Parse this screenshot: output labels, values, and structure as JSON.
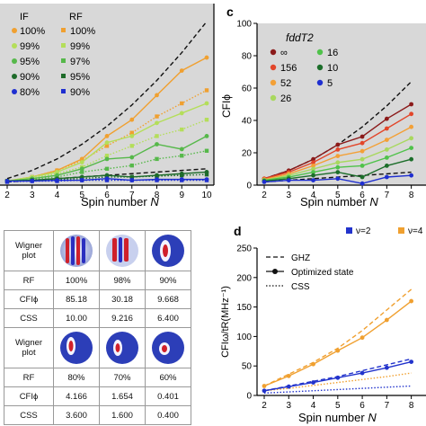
{
  "panel_a": {
    "legend_if_title": "IF",
    "legend_rf_title": "RF",
    "legend_if": [
      "100%",
      "99%",
      "95%",
      "90%",
      "80%"
    ],
    "legend_rf": [
      "100%",
      "99%",
      "97%",
      "95%",
      "90%"
    ],
    "xlabel": "Spin number",
    "xlabel_var": "N",
    "colors": [
      "#f0a030",
      "#b4de5a",
      "#56b84a",
      "#1e6b2a",
      "#1f2fd0"
    ]
  },
  "panel_c": {
    "letter": "c",
    "ylabel": "CFIϕ",
    "legend_title": "fddT2",
    "legend": [
      "∞",
      "156",
      "52",
      "26",
      "16",
      "10",
      "5"
    ],
    "legend_colors": [
      "#8b1a1a",
      "#e2462a",
      "#f3a036",
      "#a8d85e",
      "#4fc24a",
      "#1c6e2a",
      "#1f2fd0"
    ],
    "xlabel": "Spin number",
    "xlabel_var": "N"
  },
  "panel_d": {
    "letter": "d",
    "legend_top": [
      "ν=2",
      "ν=4"
    ],
    "legend_top_colors": [
      "#2233cc",
      "#f0a030"
    ],
    "legend_lines": [
      "GHZ",
      "Optimized state",
      "CSS"
    ],
    "ylabel": "CFIω/tR(MHz⁻¹)",
    "xlabel": "Spin number",
    "xlabel_var": "N"
  },
  "table": {
    "wigner_label_1": "Wigner",
    "wigner_label_2": "plot",
    "top": {
      "rf": {
        "label": "RF",
        "values": [
          "100%",
          "98%",
          "90%"
        ]
      },
      "cfi": {
        "label": "CFIϕ",
        "values": [
          "85.18",
          "30.18",
          "9.668"
        ]
      },
      "css": {
        "label": "CSS",
        "values": [
          "10.00",
          "9.216",
          "6.400"
        ]
      }
    },
    "bottom": {
      "rf": {
        "label": "RF",
        "values": [
          "80%",
          "70%",
          "60%"
        ]
      },
      "cfi": {
        "label": "CFIϕ",
        "values": [
          "4.166",
          "1.654",
          "0.401"
        ]
      },
      "css": {
        "label": "CSS",
        "values": [
          "3.600",
          "1.600",
          "0.400"
        ]
      }
    }
  },
  "chart_data": [
    {
      "type": "line",
      "panel": "a",
      "x": [
        2,
        3,
        4,
        5,
        6,
        7,
        8,
        9,
        10
      ],
      "xlim": [
        2,
        10
      ],
      "xticks": [
        "2",
        "3",
        "4",
        "5",
        "6",
        "7",
        "8",
        "9",
        "10"
      ],
      "series": [
        {
          "name": "100%",
          "style": "solid",
          "color": "#f0a030",
          "values": [
            2.5,
            5,
            9,
            16,
            30,
            40,
            55,
            70,
            78
          ]
        },
        {
          "name": "100%",
          "style": "dotted",
          "color": "#f0a030",
          "values": [
            2.5,
            5,
            9,
            15,
            24,
            32,
            42,
            50,
            58
          ]
        },
        {
          "name": "99%",
          "style": "solid",
          "color": "#b4de5a",
          "values": [
            2.5,
            5,
            8,
            14,
            26,
            30,
            38,
            44,
            50
          ]
        },
        {
          "name": "99%",
          "style": "dotted",
          "color": "#b4de5a",
          "values": [
            2.5,
            4.5,
            7,
            11,
            18,
            24,
            30,
            34,
            40
          ]
        },
        {
          "name": "95%",
          "style": "solid",
          "color": "#56b84a",
          "values": [
            2.5,
            4,
            6,
            10,
            16,
            17,
            25,
            22,
            30
          ]
        },
        {
          "name": "95%",
          "style": "dotted",
          "color": "#56b84a",
          "values": [
            2.5,
            3.5,
            5,
            8,
            10,
            12,
            16,
            18,
            21
          ]
        },
        {
          "name": "90%",
          "style": "solid",
          "color": "#1e6b2a",
          "values": [
            2.5,
            3,
            4,
            5,
            6,
            5,
            6,
            7,
            8
          ]
        },
        {
          "name": "90%",
          "style": "dotted",
          "color": "#1e6b2a",
          "values": [
            2.5,
            3,
            3.5,
            4,
            5,
            5,
            5.5,
            6,
            6.5
          ]
        },
        {
          "name": "80%",
          "style": "solid",
          "color": "#1f2fd0",
          "values": [
            2.5,
            2.5,
            3,
            3,
            4,
            3,
            3.5,
            3.5,
            3.5
          ]
        },
        {
          "name": "80%",
          "style": "dotted",
          "color": "#1f2fd0",
          "values": [
            2,
            2.5,
            2.5,
            3,
            3,
            3,
            3,
            3,
            3
          ]
        }
      ],
      "reference": {
        "style": "dashed",
        "color": "#111111",
        "values": [
          4,
          9,
          16,
          25,
          36,
          49,
          64,
          81,
          100
        ]
      },
      "reference_css": {
        "style": "dashed",
        "color": "#111111",
        "values": [
          2,
          3,
          4,
          5,
          6,
          7,
          8,
          9,
          10
        ]
      }
    },
    {
      "type": "line",
      "panel": "c",
      "x": [
        2,
        3,
        4,
        5,
        6,
        7,
        8,
        9
      ],
      "xlim": [
        2,
        8.6
      ],
      "xticks": [
        "2",
        "3",
        "4",
        "5",
        "6",
        "7",
        "8"
      ],
      "ylim": [
        0,
        100
      ],
      "yticks": [
        "0",
        "20",
        "40",
        "60",
        "80",
        "100"
      ],
      "series": [
        {
          "name": "∞",
          "color": "#8b1a1a",
          "values": [
            4,
            9,
            16,
            25,
            30,
            41,
            50,
            64
          ]
        },
        {
          "name": "156",
          "color": "#e2462a",
          "values": [
            4,
            8,
            14,
            22,
            26,
            35,
            44,
            56
          ]
        },
        {
          "name": "52",
          "color": "#f3a036",
          "values": [
            3.5,
            7,
            12,
            18,
            21,
            28,
            36,
            46
          ]
        },
        {
          "name": "26",
          "color": "#a8d85e",
          "values": [
            3,
            6,
            10,
            14,
            16,
            22,
            29,
            38
          ]
        },
        {
          "name": "16",
          "color": "#4fc24a",
          "values": [
            3,
            5,
            8,
            11,
            12,
            17,
            23,
            30
          ]
        },
        {
          "name": "10",
          "color": "#1c6e2a",
          "values": [
            2.5,
            4,
            6,
            8,
            5,
            12,
            16,
            22
          ]
        },
        {
          "name": "5",
          "color": "#1f2fd0",
          "values": [
            2,
            3,
            3,
            4,
            1,
            5,
            6,
            9
          ]
        }
      ],
      "reference": {
        "style": "dashed",
        "color": "#111111",
        "values": [
          4,
          9,
          16,
          25,
          36,
          49,
          64,
          81
        ]
      },
      "reference_css": {
        "style": "dashed",
        "color": "#111111",
        "values": [
          2,
          3,
          4,
          5,
          6,
          7,
          8,
          9
        ]
      }
    },
    {
      "type": "line",
      "panel": "d",
      "x": [
        2,
        3,
        4,
        5,
        6,
        7,
        8,
        9
      ],
      "xlim": [
        2,
        8.6
      ],
      "xticks": [
        "2",
        "3",
        "4",
        "5",
        "6",
        "7",
        "8"
      ],
      "ylim": [
        0,
        250
      ],
      "yticks": [
        "0",
        "50",
        "100",
        "150",
        "200",
        "250"
      ],
      "series": [
        {
          "name": "ν=4 GHZ",
          "style": "dashed",
          "color": "#f0a030",
          "values": [
            16,
            36,
            56,
            80,
            110,
            145,
            180,
            215
          ]
        },
        {
          "name": "ν=4 Optimized state",
          "style": "solid",
          "color": "#f0a030",
          "values": [
            16,
            33,
            53,
            76,
            98,
            128,
            160,
            200
          ]
        },
        {
          "name": "ν=4 CSS",
          "style": "dotted",
          "color": "#f0a030",
          "values": [
            8,
            12,
            17,
            22,
            27,
            32,
            38,
            44
          ]
        },
        {
          "name": "ν=2 GHZ",
          "style": "dashed",
          "color": "#2233cc",
          "values": [
            8,
            16,
            24,
            32,
            42,
            52,
            62,
            74
          ]
        },
        {
          "name": "ν=2 Optimized state",
          "style": "solid",
          "color": "#2233cc",
          "values": [
            8,
            15,
            22,
            30,
            38,
            47,
            57,
            68
          ]
        },
        {
          "name": "ν=2 CSS",
          "style": "dotted",
          "color": "#2233cc",
          "values": [
            4,
            6,
            8,
            10,
            12,
            14,
            16,
            18
          ]
        }
      ]
    }
  ]
}
